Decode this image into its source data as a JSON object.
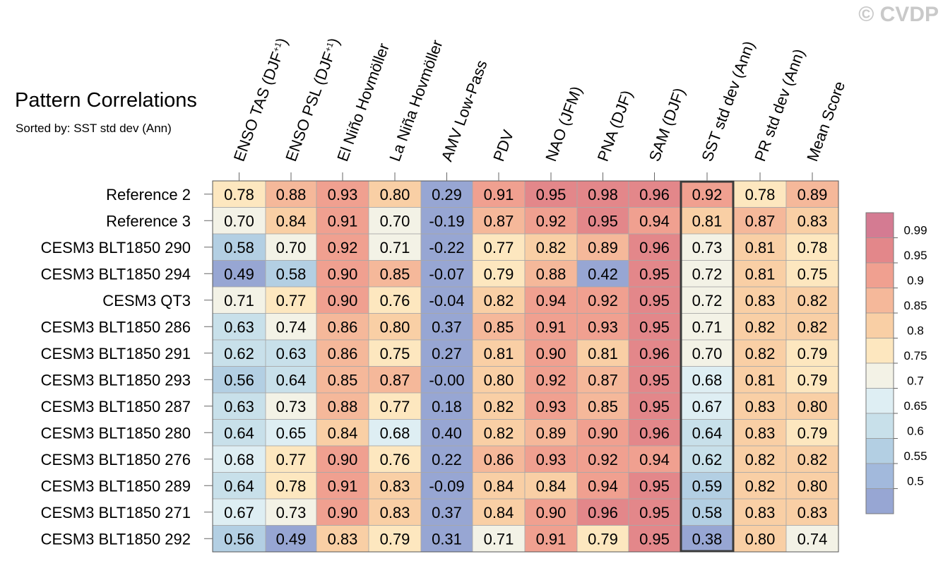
{
  "header": {
    "title": "Pattern Correlations",
    "subtitle": "Sorted by: SST std dev (Ann)",
    "watermark": "© CVDP"
  },
  "chart_data": {
    "type": "heatmap",
    "title": "Pattern Correlations",
    "subtitle": "Sorted by: SST std dev (Ann)",
    "columns": [
      "ENSO TAS (DJF+1)",
      "ENSO PSL (DJF+1)",
      "El Niño Hovmöller",
      "La Niña Hovmöller",
      "AMV Low-Pass",
      "PDV",
      "NAO (JFM)",
      "PNA (DJF)",
      "SAM (DJF)",
      "SST std dev (Ann)",
      "PR std dev (Ann)",
      "Mean Score"
    ],
    "highlighted_column": "SST std dev (Ann)",
    "rows": [
      "Reference 2",
      "Reference 3",
      "CESM3 BLT1850 290",
      "CESM3 BLT1850 294",
      "CESM3 QT3",
      "CESM3 BLT1850 286",
      "CESM3 BLT1850 291",
      "CESM3 BLT1850 293",
      "CESM3 BLT1850 287",
      "CESM3 BLT1850 280",
      "CESM3 BLT1850 276",
      "CESM3 BLT1850 289",
      "CESM3 BLT1850 271",
      "CESM3 BLT1850 292"
    ],
    "values": [
      [
        "0.78",
        "0.88",
        "0.93",
        "0.80",
        "0.29",
        "0.91",
        "0.95",
        "0.98",
        "0.96",
        "0.92",
        "0.78",
        "0.89"
      ],
      [
        "0.70",
        "0.84",
        "0.91",
        "0.70",
        "-0.19",
        "0.87",
        "0.92",
        "0.95",
        "0.94",
        "0.81",
        "0.87",
        "0.83"
      ],
      [
        "0.58",
        "0.70",
        "0.92",
        "0.71",
        "-0.22",
        "0.77",
        "0.82",
        "0.89",
        "0.96",
        "0.73",
        "0.81",
        "0.78"
      ],
      [
        "0.49",
        "0.58",
        "0.90",
        "0.85",
        "-0.07",
        "0.79",
        "0.88",
        "0.42",
        "0.95",
        "0.72",
        "0.81",
        "0.75"
      ],
      [
        "0.71",
        "0.77",
        "0.90",
        "0.76",
        "-0.04",
        "0.82",
        "0.94",
        "0.92",
        "0.95",
        "0.72",
        "0.83",
        "0.82"
      ],
      [
        "0.63",
        "0.74",
        "0.86",
        "0.80",
        "0.37",
        "0.85",
        "0.91",
        "0.93",
        "0.95",
        "0.71",
        "0.82",
        "0.82"
      ],
      [
        "0.62",
        "0.63",
        "0.86",
        "0.75",
        "0.27",
        "0.81",
        "0.90",
        "0.81",
        "0.96",
        "0.70",
        "0.82",
        "0.79"
      ],
      [
        "0.56",
        "0.64",
        "0.85",
        "0.87",
        "-0.00",
        "0.80",
        "0.92",
        "0.87",
        "0.95",
        "0.68",
        "0.81",
        "0.79"
      ],
      [
        "0.63",
        "0.73",
        "0.88",
        "0.77",
        "0.18",
        "0.82",
        "0.93",
        "0.85",
        "0.95",
        "0.67",
        "0.83",
        "0.80"
      ],
      [
        "0.64",
        "0.65",
        "0.84",
        "0.68",
        "0.40",
        "0.82",
        "0.89",
        "0.90",
        "0.96",
        "0.64",
        "0.83",
        "0.79"
      ],
      [
        "0.68",
        "0.77",
        "0.90",
        "0.76",
        "0.22",
        "0.86",
        "0.93",
        "0.92",
        "0.94",
        "0.62",
        "0.82",
        "0.82"
      ],
      [
        "0.64",
        "0.78",
        "0.91",
        "0.83",
        "-0.09",
        "0.84",
        "0.84",
        "0.94",
        "0.95",
        "0.59",
        "0.82",
        "0.80"
      ],
      [
        "0.67",
        "0.73",
        "0.90",
        "0.83",
        "0.37",
        "0.84",
        "0.90",
        "0.96",
        "0.95",
        "0.58",
        "0.83",
        "0.83"
      ],
      [
        "0.56",
        "0.49",
        "0.83",
        "0.79",
        "0.31",
        "0.71",
        "0.91",
        "0.79",
        "0.95",
        "0.38",
        "0.80",
        "0.74"
      ]
    ],
    "colorbar": {
      "labels": [
        "0.99",
        "0.95",
        "0.9",
        "0.85",
        "0.8",
        "0.75",
        "0.7",
        "0.65",
        "0.6",
        "0.55",
        "0.5"
      ],
      "colors": [
        "#d47b92",
        "#e3878a",
        "#f0a090",
        "#f5b89a",
        "#f9cfa5",
        "#fde7bf",
        "#f3f2e6",
        "#deeef3",
        "#c8e0ea",
        "#b3cfe3",
        "#a2b9dc",
        "#97a6d3"
      ]
    }
  }
}
